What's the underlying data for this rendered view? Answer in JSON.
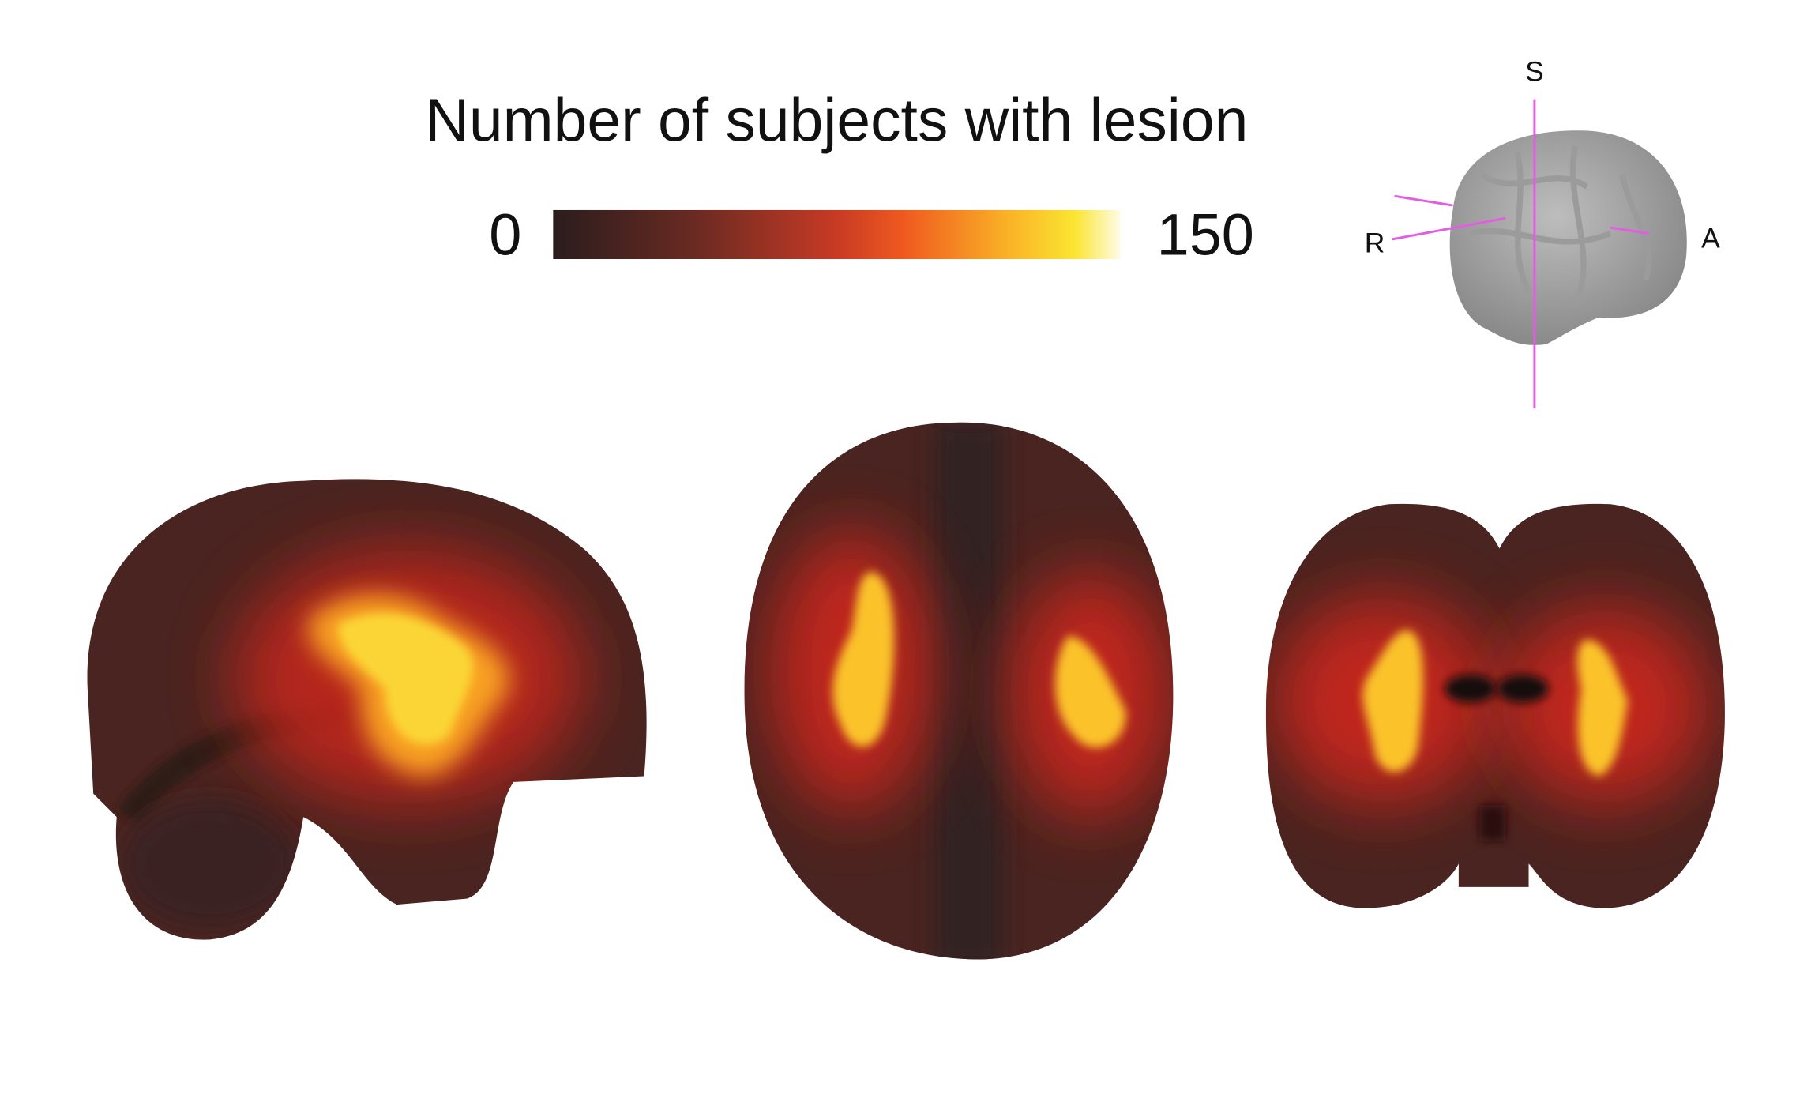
{
  "legend": {
    "title": "Number of subjects with lesion",
    "min": 0,
    "max": 150
  },
  "orientation": {
    "superior": "S",
    "right": "R",
    "anterior": "A"
  }
}
